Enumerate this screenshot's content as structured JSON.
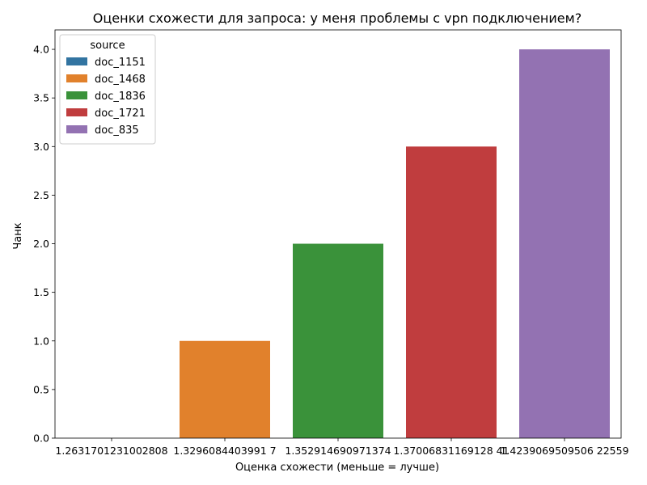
{
  "chart_data": {
    "type": "bar",
    "title": "Оценки схожести для запроса: у меня проблемы с vpn подключением?",
    "xlabel": "Оценка схожести (меньше = лучше)",
    "ylabel": "Чанк",
    "categories": [
      "1.2631701231002808",
      "1.3296084403991 7",
      "1.352914690971374",
      "1.37006831169128 41",
      "1.4239069509506 22559"
    ],
    "values": [
      0,
      1,
      2,
      3,
      4
    ],
    "sources": [
      "doc_1151",
      "doc_1468",
      "doc_1836",
      "doc_1721",
      "doc_835"
    ],
    "colors": [
      "#3274a1",
      "#e1812c",
      "#3a923a",
      "#c03d3e",
      "#9372b2"
    ],
    "ylim": [
      0,
      4.2
    ],
    "yticks": [
      "0.0",
      "0.5",
      "1.0",
      "1.5",
      "2.0",
      "2.5",
      "3.0",
      "3.5",
      "4.0"
    ],
    "grid": false,
    "legend": {
      "title": "source",
      "placement": "top-left",
      "entries": [
        "doc_1151",
        "doc_1468",
        "doc_1836",
        "doc_1721",
        "doc_835"
      ]
    }
  }
}
